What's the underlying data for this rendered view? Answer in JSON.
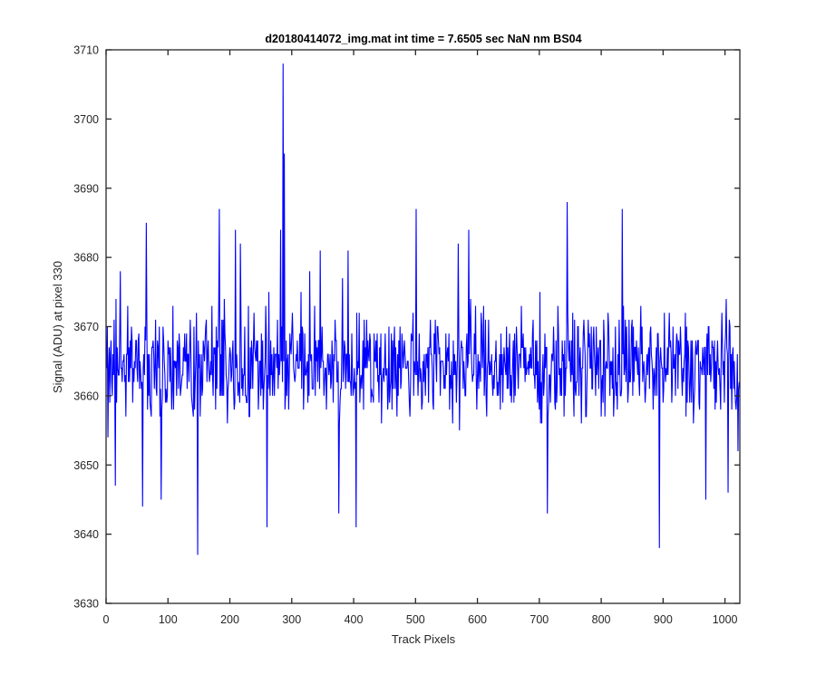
{
  "chart_data": {
    "type": "line",
    "title": "d20180414072_img.mat int time = 7.6505 sec  NaN nm BS04",
    "xlabel": "Track Pixels",
    "ylabel": "Signal (ADU) at pixel 330",
    "xlim": [
      0,
      1024
    ],
    "ylim": [
      3630,
      3710
    ],
    "xticks": [
      0,
      100,
      200,
      300,
      400,
      500,
      600,
      700,
      800,
      900,
      1000
    ],
    "yticks": [
      3630,
      3640,
      3650,
      3660,
      3670,
      3680,
      3690,
      3700,
      3710
    ],
    "grid": false,
    "box": true,
    "series_color": "#0000ff",
    "series": [
      {
        "n_points": 1024,
        "mean": 3664.5,
        "noise_amplitude": 7.5,
        "values_min": 3637,
        "values_max": 3708,
        "notable_points": [
          {
            "x": 14,
            "y": 3647
          },
          {
            "x": 22,
            "y": 3678
          },
          {
            "x": 58,
            "y": 3644
          },
          {
            "x": 64,
            "y": 3685
          },
          {
            "x": 88,
            "y": 3645
          },
          {
            "x": 147,
            "y": 3637
          },
          {
            "x": 182,
            "y": 3687
          },
          {
            "x": 208,
            "y": 3684
          },
          {
            "x": 216,
            "y": 3682
          },
          {
            "x": 259,
            "y": 3641
          },
          {
            "x": 281,
            "y": 3684
          },
          {
            "x": 285,
            "y": 3708
          },
          {
            "x": 287,
            "y": 3695
          },
          {
            "x": 300,
            "y": 3672
          },
          {
            "x": 314,
            "y": 3675
          },
          {
            "x": 328,
            "y": 3678
          },
          {
            "x": 345,
            "y": 3681
          },
          {
            "x": 375,
            "y": 3643
          },
          {
            "x": 381,
            "y": 3677
          },
          {
            "x": 390,
            "y": 3681
          },
          {
            "x": 403,
            "y": 3641
          },
          {
            "x": 500,
            "y": 3687
          },
          {
            "x": 559,
            "y": 3656
          },
          {
            "x": 568,
            "y": 3682
          },
          {
            "x": 585,
            "y": 3684
          },
          {
            "x": 712,
            "y": 3643
          },
          {
            "x": 744,
            "y": 3688
          },
          {
            "x": 833,
            "y": 3687
          },
          {
            "x": 893,
            "y": 3638
          },
          {
            "x": 968,
            "y": 3645
          },
          {
            "x": 1004,
            "y": 3646
          },
          {
            "x": 1020,
            "y": 3652
          }
        ]
      }
    ]
  }
}
